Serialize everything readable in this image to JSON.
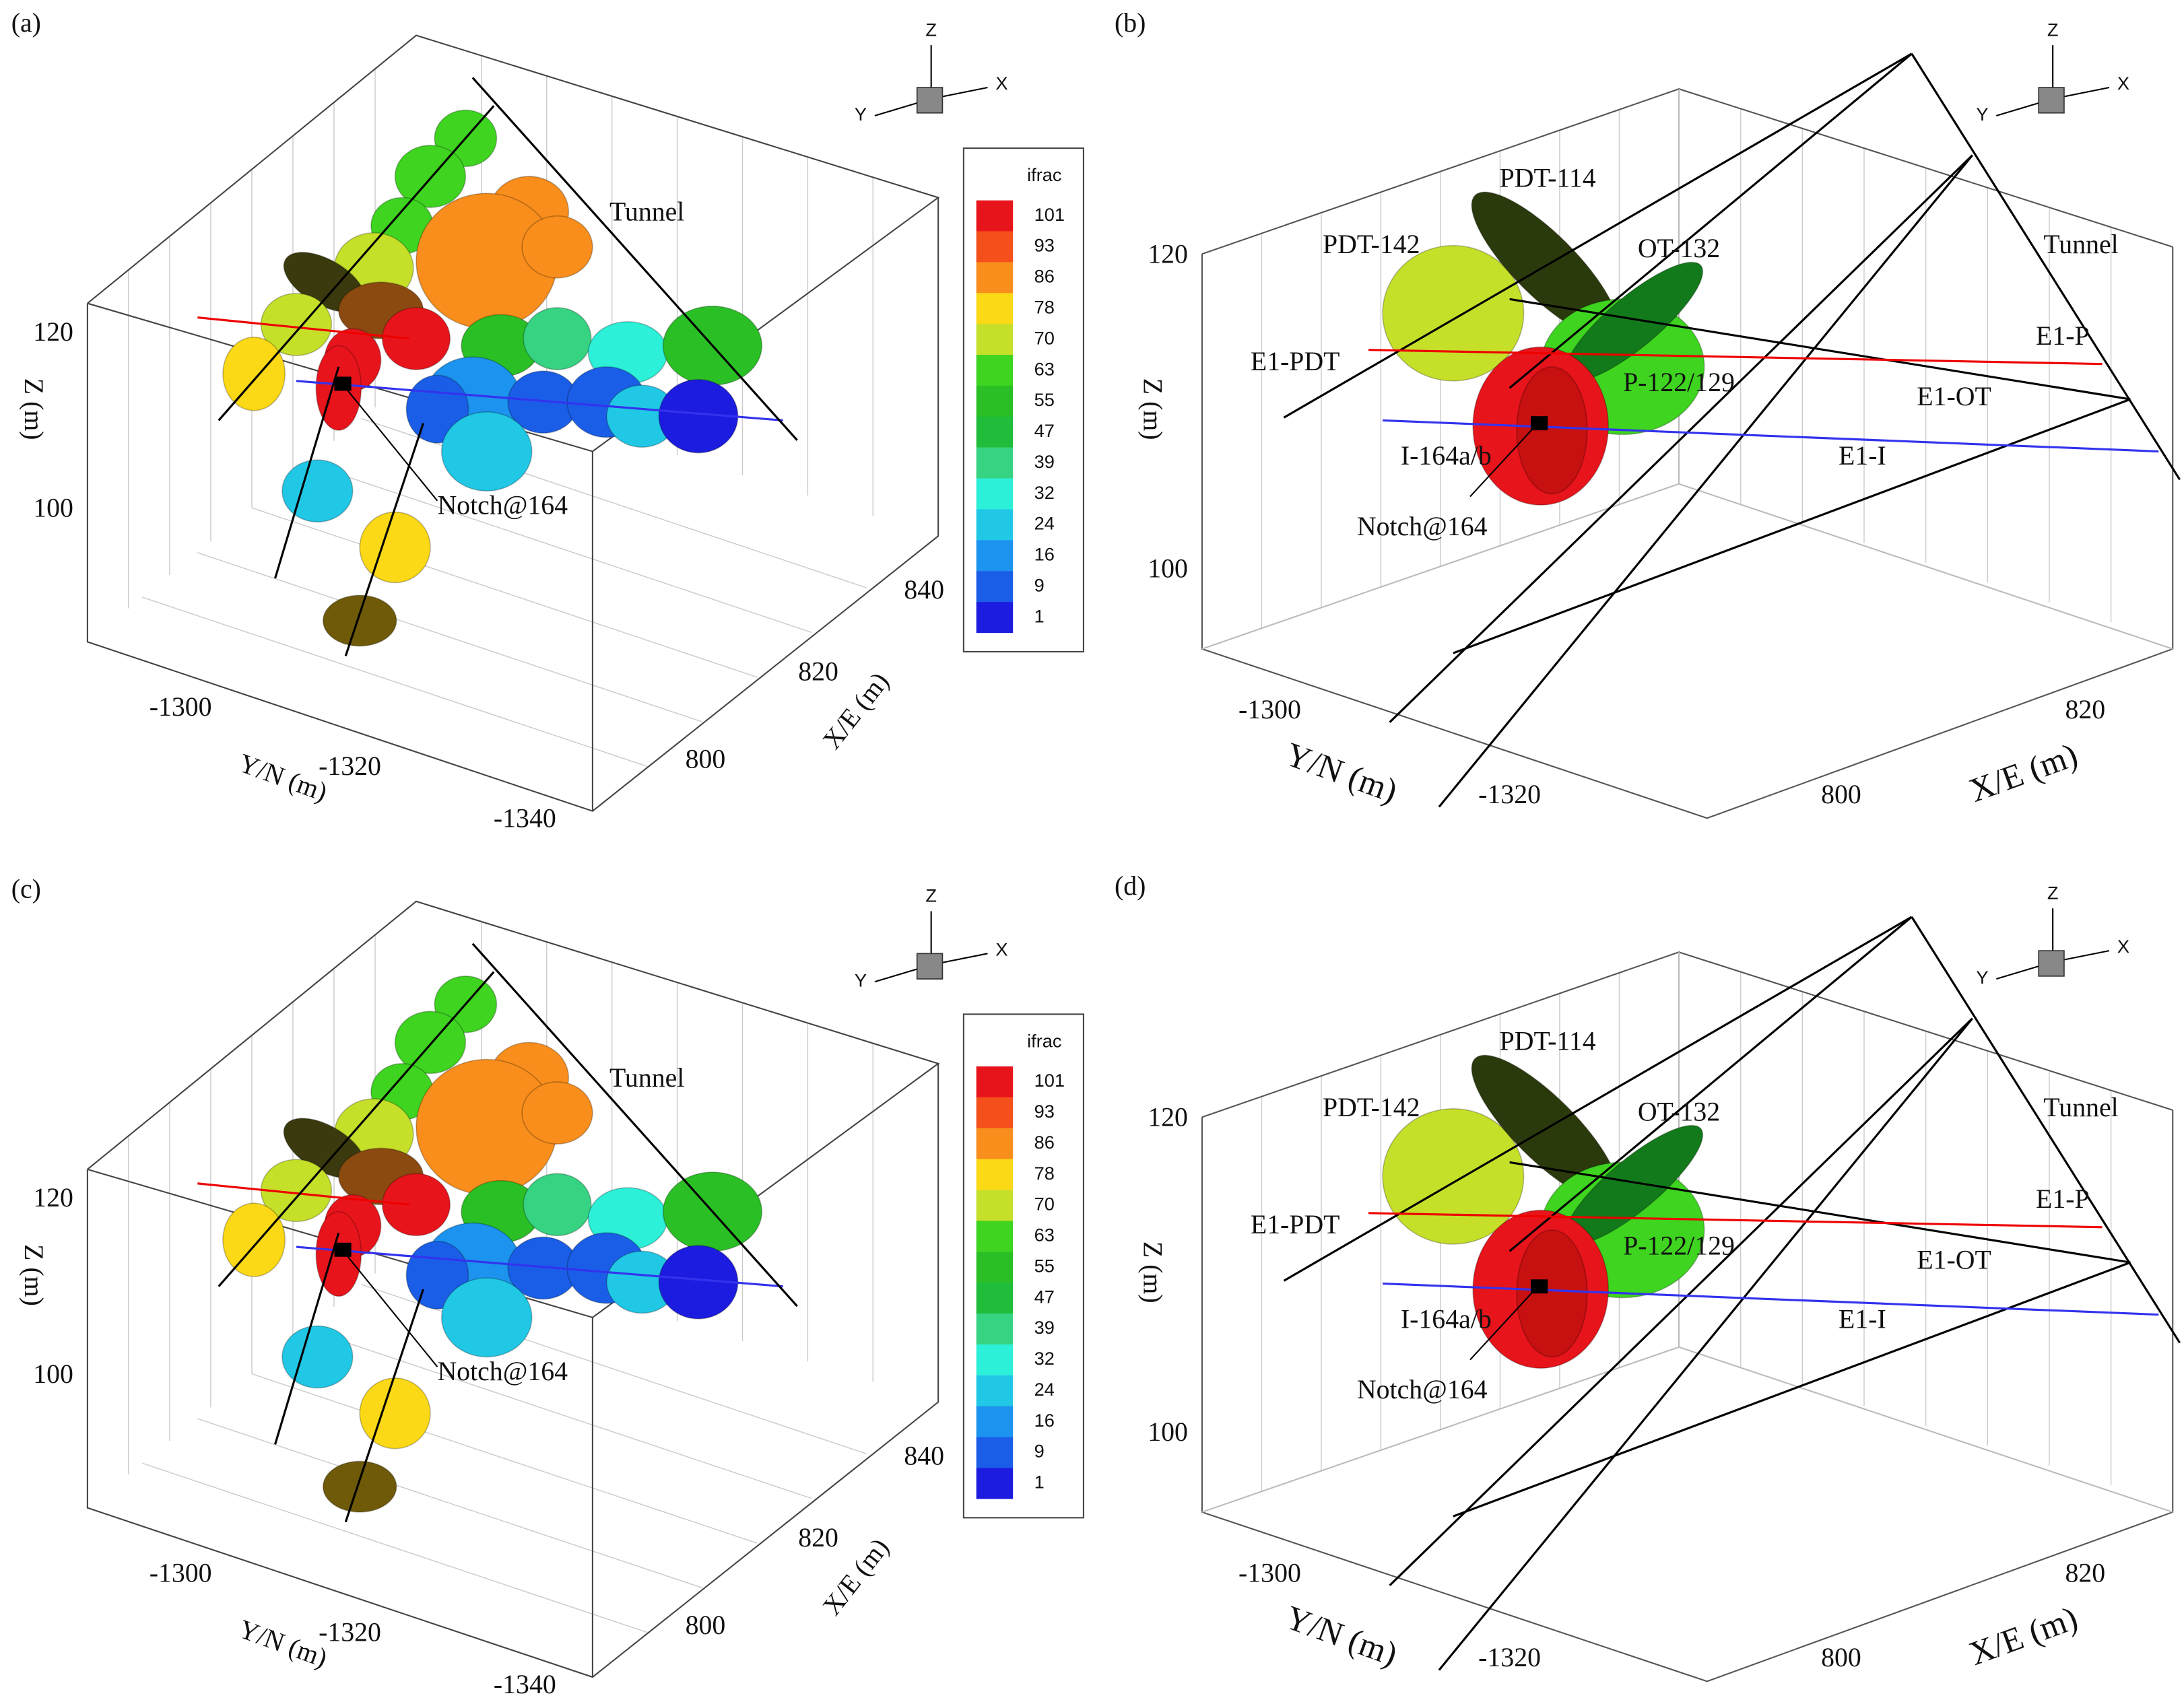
{
  "panels": [
    {
      "label": "(a)",
      "z_ticks": [
        "120",
        "100"
      ],
      "y_ticks": [
        "-1300",
        "-1320",
        "-1340"
      ],
      "x_ticks": [
        "800",
        "820",
        "840"
      ],
      "z_label": "Z (m)",
      "y_label": "Y/N (m)",
      "x_label": "X/E (m)",
      "annotations": [
        "Tunnel",
        "Notch@164"
      ],
      "triad": [
        "Z",
        "Y",
        "X"
      ],
      "legend": {
        "title": "ifrac",
        "levels": [
          "101",
          "93",
          "86",
          "78",
          "70",
          "63",
          "55",
          "47",
          "39",
          "32",
          "24",
          "16",
          "9",
          "1"
        ]
      }
    },
    {
      "label": "(b)",
      "z_ticks": [
        "120",
        "100"
      ],
      "y_ticks": [
        "-1300",
        "-1320"
      ],
      "x_ticks": [
        "800",
        "820"
      ],
      "z_label": "Z (m)",
      "y_label": "Y/N (m)",
      "x_label": "X/E (m)",
      "annotations": [
        "PDT-114",
        "PDT-142",
        "OT-132",
        "Tunnel",
        "E1-PDT",
        "E1-P",
        "P-122/129",
        "E1-OT",
        "I-164a/b",
        "E1-I",
        "Notch@164"
      ],
      "triad": [
        "Z",
        "Y",
        "X"
      ]
    },
    {
      "label": "(c)",
      "z_ticks": [
        "120",
        "100"
      ],
      "y_ticks": [
        "-1300",
        "-1320",
        "-1340"
      ],
      "x_ticks": [
        "800",
        "820",
        "840"
      ],
      "z_label": "Z (m)",
      "y_label": "Y/N (m)",
      "x_label": "X/E (m)",
      "annotations": [
        "Tunnel",
        "Notch@164"
      ],
      "triad": [
        "Z",
        "Y",
        "X"
      ],
      "legend": {
        "title": "ifrac",
        "levels": [
          "101",
          "93",
          "86",
          "78",
          "70",
          "63",
          "55",
          "47",
          "39",
          "32",
          "24",
          "16",
          "9",
          "1"
        ]
      }
    },
    {
      "label": "(d)",
      "z_ticks": [
        "120",
        "100"
      ],
      "y_ticks": [
        "-1300",
        "-1320"
      ],
      "x_ticks": [
        "800",
        "820"
      ],
      "z_label": "Z (m)",
      "y_label": "Y/N (m)",
      "x_label": "X/E (m)",
      "annotations": [
        "PDT-114",
        "PDT-142",
        "OT-132",
        "Tunnel",
        "E1-PDT",
        "E1-P",
        "P-122/129",
        "E1-OT",
        "I-164a/b",
        "E1-I",
        "Notch@164"
      ],
      "triad": [
        "Z",
        "Y",
        "X"
      ]
    }
  ]
}
